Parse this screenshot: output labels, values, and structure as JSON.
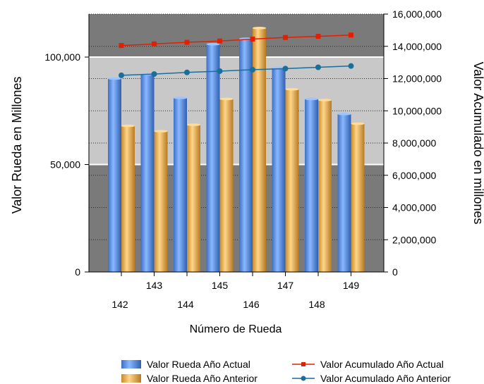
{
  "chart_data": {
    "type": "bar",
    "xlabel": "Número de Rueda",
    "ylabel": "Valor Rueda en Millones",
    "y2label": "Valor Acumulado en millones",
    "categories": [
      "142",
      "143",
      "144",
      "145",
      "146",
      "147",
      "148",
      "149"
    ],
    "ylim": [
      0,
      120000
    ],
    "yticks": [
      "0",
      "50,000",
      "100,000"
    ],
    "ytick_values": [
      0,
      50000,
      100000
    ],
    "y2lim": [
      0,
      16000000
    ],
    "y2ticks": [
      "0",
      "2,000,000",
      "4,000,000",
      "6,000,000",
      "8,000,000",
      "10,000,000",
      "12,000,000",
      "14,000,000",
      "16,000,000"
    ],
    "y2tick_values": [
      0,
      2000000,
      4000000,
      6000000,
      8000000,
      10000000,
      12000000,
      14000000,
      16000000
    ],
    "series": [
      {
        "name": "Valor Rueda Año Actual",
        "kind": "bar",
        "axis": "left",
        "color": "#4a86e0",
        "values": [
          90000,
          92000,
          81000,
          106000,
          108500,
          95000,
          80500,
          73500
        ]
      },
      {
        "name": "Valor Rueda Año Anterior",
        "kind": "bar",
        "axis": "left",
        "color": "#f0b050",
        "values": [
          68000,
          65500,
          68500,
          80500,
          113500,
          85000,
          80000,
          69000
        ]
      },
      {
        "name": "Valor Acumulado Año Actual",
        "kind": "line",
        "axis": "right",
        "color": "#e02000",
        "values": [
          14050000,
          14150000,
          14250000,
          14330000,
          14450000,
          14550000,
          14620000,
          14700000
        ]
      },
      {
        "name": "Valor Acumulado Año Anterior",
        "kind": "line",
        "axis": "right",
        "color": "#1a6e9a",
        "values": [
          12200000,
          12280000,
          12380000,
          12460000,
          12550000,
          12620000,
          12700000,
          12780000
        ]
      }
    ],
    "legend": "bottom-right",
    "grid": true
  }
}
